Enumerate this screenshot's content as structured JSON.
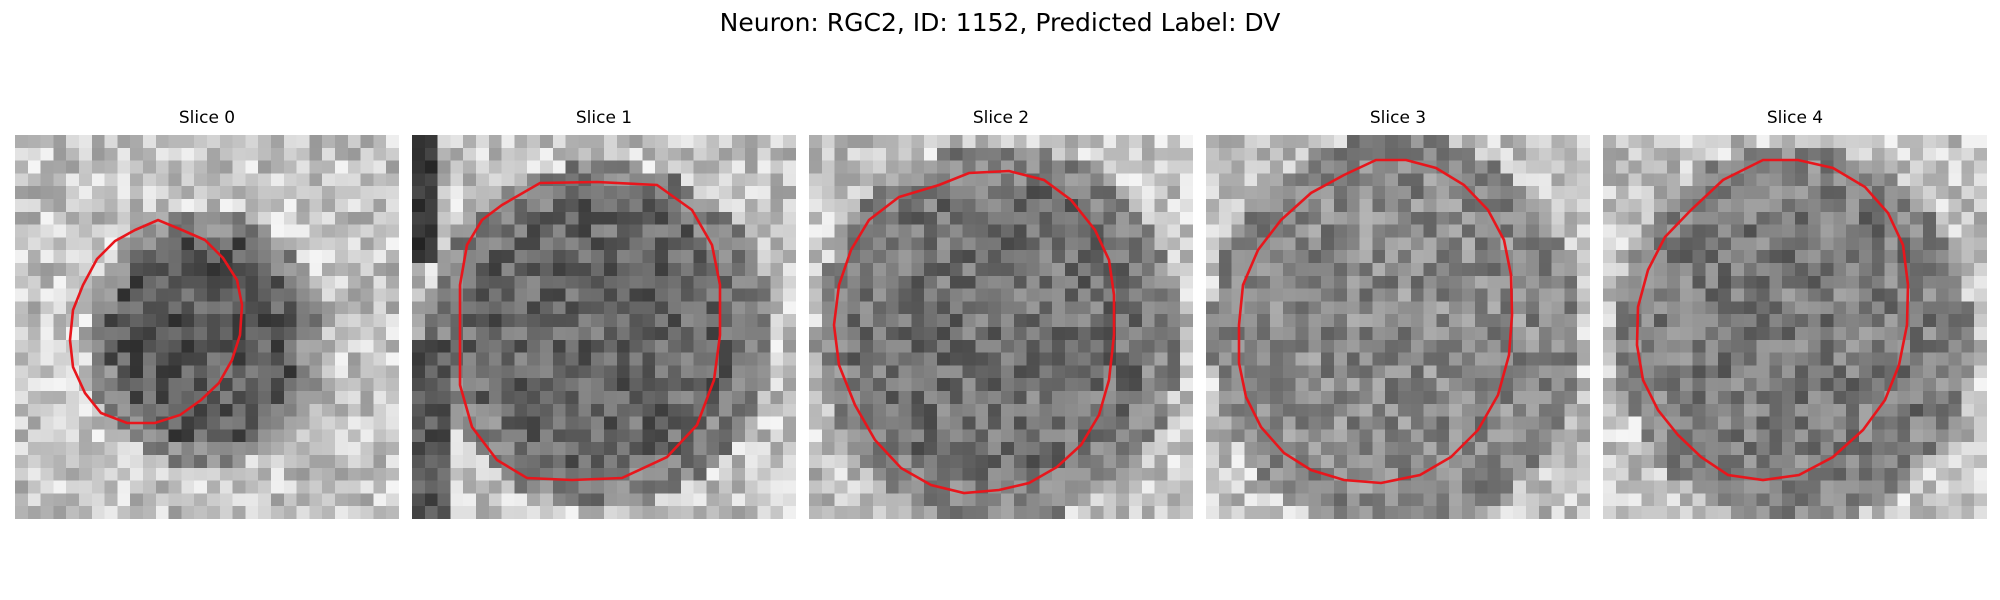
{
  "figure": {
    "title": "Neuron: RGC2, ID: 1152, Predicted Label: DV"
  },
  "colors": {
    "contour": "#e8161c",
    "background": "#ffffff"
  },
  "panels": [
    {
      "title": "Slice 0"
    },
    {
      "title": "Slice 1"
    },
    {
      "title": "Slice 2"
    },
    {
      "title": "Slice 3"
    },
    {
      "title": "Slice 4"
    }
  ]
}
